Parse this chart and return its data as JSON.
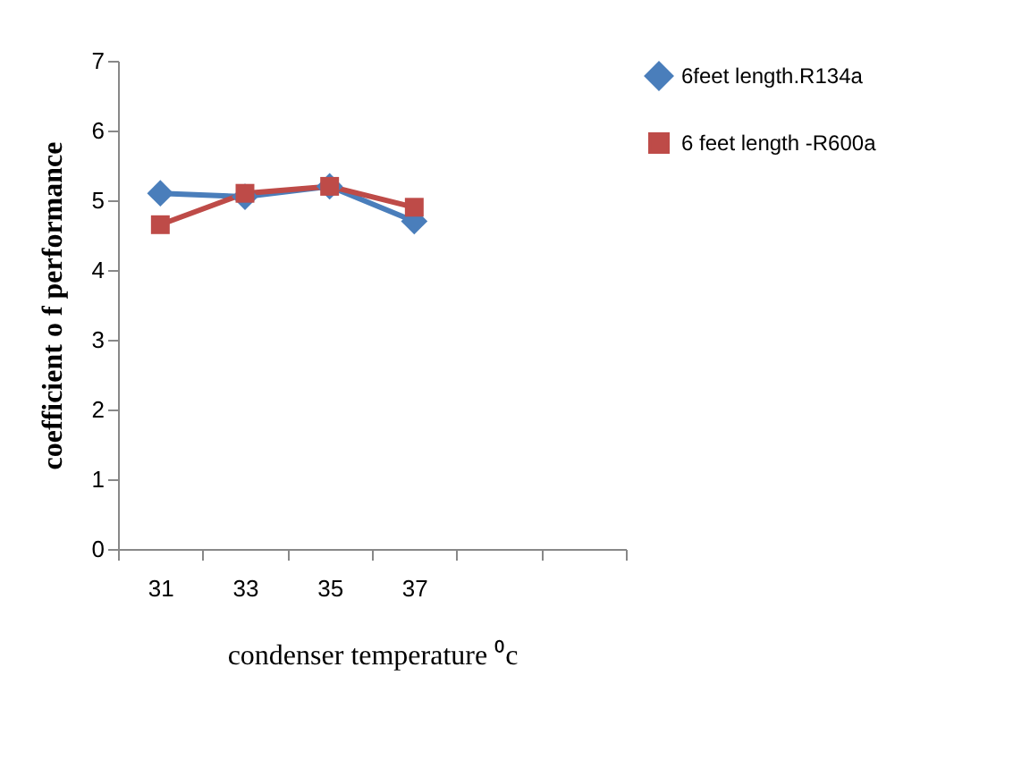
{
  "chart_data": {
    "type": "line",
    "xlabel": "condenser temperature ⁰c",
    "ylabel": "coefficient o f performance",
    "categories": [
      "31",
      "33",
      "35",
      "37",
      null,
      null
    ],
    "ylim": [
      0,
      7
    ],
    "yticks": [
      0,
      1,
      2,
      3,
      4,
      5,
      6,
      7
    ],
    "grid": false,
    "legend": "right",
    "series": [
      {
        "name": "6feet length.R134a",
        "color": "#4a7ebb",
        "marker": "diamond",
        "values": [
          5.1,
          5.05,
          5.2,
          4.7,
          null,
          null
        ]
      },
      {
        "name": "6 feet length -R600a",
        "color": "#be4b48",
        "marker": "square",
        "values": [
          4.65,
          5.1,
          5.2,
          4.9,
          null,
          null
        ]
      }
    ]
  }
}
